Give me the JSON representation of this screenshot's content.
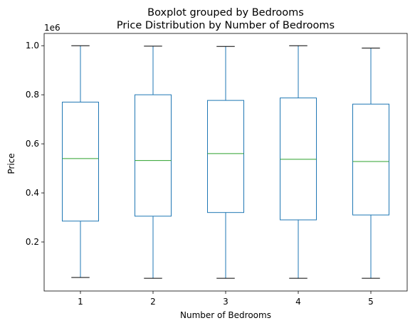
{
  "chart_data": {
    "type": "boxplot",
    "title": "Boxplot grouped by Bedrooms",
    "subtitle": "Price Distribution by Number of Bedrooms",
    "xlabel": "Number of Bedrooms",
    "ylabel": "Price",
    "y_offset_label": "1e6",
    "ylim": [
      0.0,
      1.05
    ],
    "yticks": [
      0.2,
      0.4,
      0.6,
      0.8,
      1.0
    ],
    "ytick_labels": [
      "0.2",
      "0.4",
      "0.6",
      "0.8",
      "1.0"
    ],
    "grid": false,
    "box_color": "#1f77b4",
    "median_color": "#2ca02c",
    "categories": [
      "1",
      "2",
      "3",
      "4",
      "5"
    ],
    "boxes": [
      {
        "category": "1",
        "whisker_low": 0.055,
        "q1": 0.285,
        "median": 0.54,
        "q3": 0.77,
        "whisker_high": 1.0
      },
      {
        "category": "2",
        "whisker_low": 0.052,
        "q1": 0.305,
        "median": 0.532,
        "q3": 0.8,
        "whisker_high": 0.998
      },
      {
        "category": "3",
        "whisker_low": 0.052,
        "q1": 0.32,
        "median": 0.56,
        "q3": 0.777,
        "whisker_high": 0.997
      },
      {
        "category": "4",
        "whisker_low": 0.052,
        "q1": 0.29,
        "median": 0.537,
        "q3": 0.787,
        "whisker_high": 1.0
      },
      {
        "category": "5",
        "whisker_low": 0.052,
        "q1": 0.31,
        "median": 0.528,
        "q3": 0.762,
        "whisker_high": 0.99
      }
    ]
  }
}
